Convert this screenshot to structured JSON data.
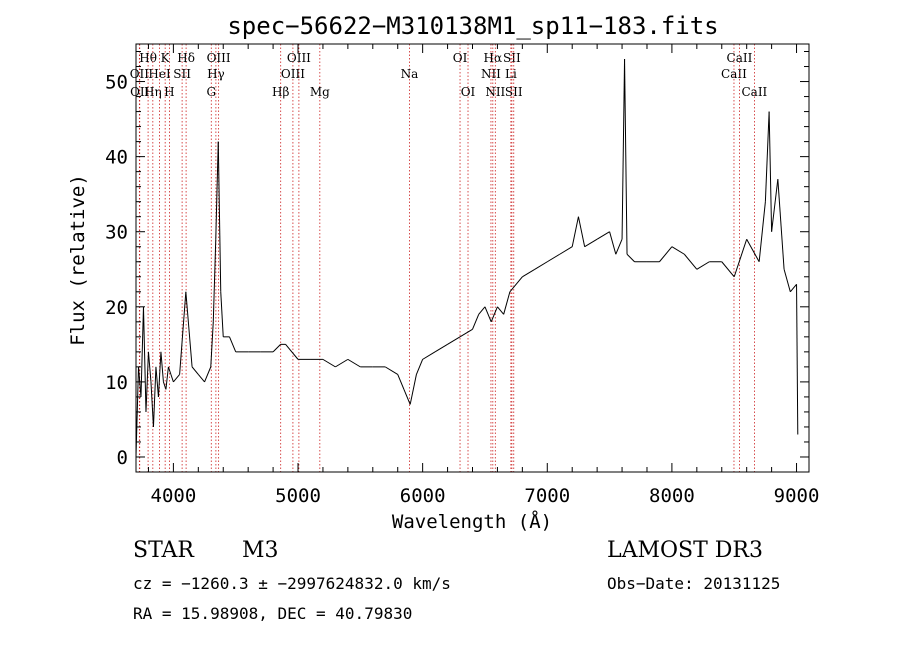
{
  "chart_data": {
    "type": "line",
    "title": "spec−56622−M310138M1_sp11−183.fits",
    "xlabel": "Wavelength (Å)",
    "ylabel": "Flux (relative)",
    "xlim": [
      3700,
      9100
    ],
    "ylim": [
      -2,
      55
    ],
    "xticks": [
      4000,
      5000,
      6000,
      7000,
      8000,
      9000
    ],
    "yticks": [
      0,
      10,
      20,
      30,
      40,
      50
    ],
    "grid": false,
    "series": [
      {
        "name": "flux",
        "x": [
          3700,
          3720,
          3740,
          3760,
          3780,
          3800,
          3820,
          3840,
          3860,
          3880,
          3900,
          3920,
          3940,
          3960,
          3980,
          4000,
          4050,
          4100,
          4150,
          4200,
          4250,
          4300,
          4320,
          4340,
          4360,
          4380,
          4400,
          4450,
          4500,
          4600,
          4700,
          4800,
          4860,
          4900,
          5000,
          5100,
          5200,
          5300,
          5400,
          5500,
          5600,
          5700,
          5800,
          5850,
          5900,
          5950,
          6000,
          6100,
          6200,
          6300,
          6400,
          6450,
          6500,
          6550,
          6600,
          6650,
          6700,
          6800,
          6900,
          7000,
          7100,
          7200,
          7250,
          7300,
          7400,
          7500,
          7550,
          7600,
          7620,
          7640,
          7700,
          7800,
          7900,
          8000,
          8100,
          8200,
          8300,
          8400,
          8500,
          8600,
          8700,
          8750,
          8780,
          8800,
          8850,
          8900,
          8950,
          9000,
          9010
        ],
        "values": [
          0,
          12,
          8,
          20,
          6,
          14,
          10,
          4,
          12,
          8,
          14,
          10,
          9,
          12,
          11,
          10,
          11,
          22,
          12,
          11,
          10,
          12,
          18,
          29,
          42,
          22,
          16,
          16,
          14,
          14,
          14,
          14,
          15,
          15,
          13,
          13,
          13,
          12,
          13,
          12,
          12,
          12,
          11,
          9,
          7,
          11,
          13,
          14,
          15,
          16,
          17,
          19,
          20,
          18,
          20,
          19,
          22,
          24,
          25,
          26,
          27,
          28,
          32,
          28,
          29,
          30,
          27,
          29,
          53,
          27,
          26,
          26,
          26,
          28,
          27,
          25,
          26,
          26,
          24,
          29,
          26,
          34,
          46,
          30,
          37,
          25,
          22,
          23,
          3
        ]
      }
    ],
    "lines": [
      {
        "label": "Hθ",
        "x": 3797,
        "row": 1
      },
      {
        "label": "OII",
        "x": 3727,
        "row": 2
      },
      {
        "label": "OII",
        "x": 3730,
        "row": 3
      },
      {
        "label": "Hη",
        "x": 3835,
        "row": 3
      },
      {
        "label": "HeI",
        "x": 3889,
        "row": 2
      },
      {
        "label": "K",
        "x": 3934,
        "row": 1
      },
      {
        "label": "H",
        "x": 3968,
        "row": 3
      },
      {
        "label": "SII",
        "x": 4070,
        "row": 2
      },
      {
        "label": "Hδ",
        "x": 4102,
        "row": 1
      },
      {
        "label": "G",
        "x": 4304,
        "row": 3
      },
      {
        "label": "Hγ",
        "x": 4341,
        "row": 2
      },
      {
        "label": "OIII",
        "x": 4363,
        "row": 1
      },
      {
        "label": "Hβ",
        "x": 4861,
        "row": 3
      },
      {
        "label": "OIII",
        "x": 4959,
        "row": 2
      },
      {
        "label": "OIII",
        "x": 5007,
        "row": 1
      },
      {
        "label": "Mg",
        "x": 5175,
        "row": 3
      },
      {
        "label": "Na",
        "x": 5894,
        "row": 2
      },
      {
        "label": "OI",
        "x": 6300,
        "row": 1
      },
      {
        "label": "OI",
        "x": 6364,
        "row": 3
      },
      {
        "label": "NII",
        "x": 6548,
        "row": 2
      },
      {
        "label": "Hα",
        "x": 6563,
        "row": 1
      },
      {
        "label": "NII",
        "x": 6583,
        "row": 3
      },
      {
        "label": "SII",
        "x": 6716,
        "row": 1
      },
      {
        "label": "Li",
        "x": 6708,
        "row": 2
      },
      {
        "label": "SII",
        "x": 6731,
        "row": 3
      },
      {
        "label": "CaII",
        "x": 8498,
        "row": 2
      },
      {
        "label": "CaII",
        "x": 8542,
        "row": 1
      },
      {
        "label": "CaII",
        "x": 8662,
        "row": 3
      }
    ]
  },
  "info": {
    "object_class": "STAR",
    "subclass": "M3",
    "survey": "LAMOST DR3",
    "redshift_line": "cz = −1260.3 ± −2997624832.0 km/s",
    "obs_date_line": "Obs−Date: 20131125",
    "coords_line": "RA =  15.98908, DEC =  40.79830"
  },
  "colors": {
    "line_marker": "#cc2222",
    "spectrum": "#000000",
    "axis": "#000000"
  }
}
